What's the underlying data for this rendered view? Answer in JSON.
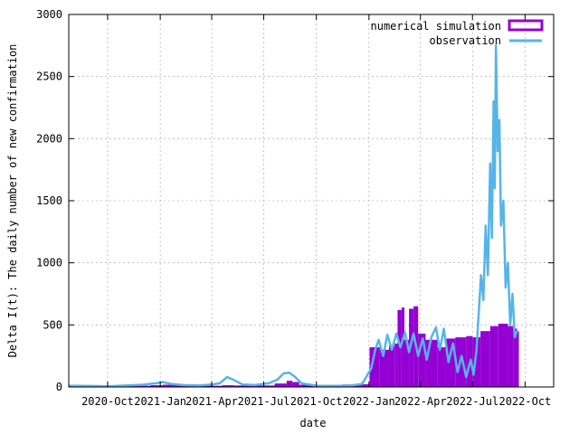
{
  "chart_data": {
    "type": "bar",
    "title": "",
    "xlabel": "date",
    "ylabel": "Delta I(t): The daily number of new confirmation",
    "x_range": [
      "2020-07-25",
      "2022-11-20"
    ],
    "ylim": [
      0,
      3000
    ],
    "x_ticks": [
      {
        "label": "2020-Oct",
        "date": "2020-10-01"
      },
      {
        "label": "2021-Jan",
        "date": "2021-01-01"
      },
      {
        "label": "2021-Apr",
        "date": "2021-04-01"
      },
      {
        "label": "2021-Jul",
        "date": "2021-07-01"
      },
      {
        "label": "2021-Oct",
        "date": "2021-10-01"
      },
      {
        "label": "2022-Jan",
        "date": "2022-01-01"
      },
      {
        "label": "2022-Apr",
        "date": "2022-04-01"
      },
      {
        "label": "2022-Jul",
        "date": "2022-07-01"
      },
      {
        "label": "2022-Oct",
        "date": "2022-10-01"
      }
    ],
    "y_ticks": [
      0,
      500,
      1000,
      1500,
      2000,
      2500,
      3000
    ],
    "grid": true,
    "legend_position": "top-right",
    "series": [
      {
        "name": "numerical simulation",
        "kind": "bar",
        "color": "#9400d3",
        "points": [
          [
            "2020-07-25",
            8
          ],
          [
            "2020-09-01",
            8
          ],
          [
            "2020-11-01",
            10
          ],
          [
            "2020-12-15",
            14
          ],
          [
            "2021-01-05",
            18
          ],
          [
            "2021-02-15",
            12
          ],
          [
            "2021-04-01",
            10
          ],
          [
            "2021-04-20",
            14
          ],
          [
            "2021-05-10",
            12
          ],
          [
            "2021-06-15",
            12
          ],
          [
            "2021-07-20",
            28
          ],
          [
            "2021-08-10",
            50
          ],
          [
            "2021-08-20",
            40
          ],
          [
            "2021-09-01",
            18
          ],
          [
            "2021-10-15",
            16
          ],
          [
            "2021-11-15",
            20
          ],
          [
            "2021-12-15",
            22
          ],
          [
            "2021-12-31",
            24
          ],
          [
            "2022-01-02",
            320
          ],
          [
            "2022-01-20",
            300
          ],
          [
            "2022-02-05",
            330
          ],
          [
            "2022-02-15",
            350
          ],
          [
            "2022-02-20",
            620
          ],
          [
            "2022-02-27",
            640
          ],
          [
            "2022-03-04",
            380
          ],
          [
            "2022-03-12",
            630
          ],
          [
            "2022-03-20",
            650
          ],
          [
            "2022-03-28",
            430
          ],
          [
            "2022-04-10",
            380
          ],
          [
            "2022-05-01",
            320
          ],
          [
            "2022-05-15",
            390
          ],
          [
            "2022-06-01",
            400
          ],
          [
            "2022-06-20",
            410
          ],
          [
            "2022-07-01",
            400
          ],
          [
            "2022-07-15",
            450
          ],
          [
            "2022-08-01",
            490
          ],
          [
            "2022-08-15",
            510
          ],
          [
            "2022-09-01",
            490
          ],
          [
            "2022-09-10",
            470
          ],
          [
            "2022-09-17",
            450
          ]
        ]
      },
      {
        "name": "observation",
        "kind": "line",
        "color": "#56b4e9",
        "points": [
          [
            "2020-07-25",
            10
          ],
          [
            "2020-09-01",
            8
          ],
          [
            "2020-10-01",
            5
          ],
          [
            "2020-11-01",
            12
          ],
          [
            "2020-12-01",
            18
          ],
          [
            "2020-12-25",
            30
          ],
          [
            "2021-01-05",
            40
          ],
          [
            "2021-01-20",
            25
          ],
          [
            "2021-02-10",
            15
          ],
          [
            "2021-03-10",
            12
          ],
          [
            "2021-04-01",
            20
          ],
          [
            "2021-04-15",
            30
          ],
          [
            "2021-04-28",
            80
          ],
          [
            "2021-05-10",
            55
          ],
          [
            "2021-05-25",
            20
          ],
          [
            "2021-06-15",
            15
          ],
          [
            "2021-07-10",
            30
          ],
          [
            "2021-07-25",
            60
          ],
          [
            "2021-08-05",
            110
          ],
          [
            "2021-08-15",
            115
          ],
          [
            "2021-08-25",
            80
          ],
          [
            "2021-09-05",
            30
          ],
          [
            "2021-10-01",
            10
          ],
          [
            "2021-11-01",
            8
          ],
          [
            "2021-12-01",
            12
          ],
          [
            "2021-12-20",
            25
          ],
          [
            "2022-01-05",
            150
          ],
          [
            "2022-01-12",
            300
          ],
          [
            "2022-01-18",
            380
          ],
          [
            "2022-01-26",
            250
          ],
          [
            "2022-02-02",
            420
          ],
          [
            "2022-02-10",
            300
          ],
          [
            "2022-02-18",
            430
          ],
          [
            "2022-02-25",
            320
          ],
          [
            "2022-03-05",
            440
          ],
          [
            "2022-03-12",
            280
          ],
          [
            "2022-03-20",
            430
          ],
          [
            "2022-03-28",
            250
          ],
          [
            "2022-04-05",
            390
          ],
          [
            "2022-04-12",
            220
          ],
          [
            "2022-04-20",
            400
          ],
          [
            "2022-04-28",
            480
          ],
          [
            "2022-05-05",
            300
          ],
          [
            "2022-05-12",
            470
          ],
          [
            "2022-05-20",
            200
          ],
          [
            "2022-05-28",
            350
          ],
          [
            "2022-06-05",
            120
          ],
          [
            "2022-06-12",
            250
          ],
          [
            "2022-06-20",
            80
          ],
          [
            "2022-06-28",
            220
          ],
          [
            "2022-07-03",
            100
          ],
          [
            "2022-07-08",
            300
          ],
          [
            "2022-07-12",
            600
          ],
          [
            "2022-07-16",
            900
          ],
          [
            "2022-07-20",
            700
          ],
          [
            "2022-07-24",
            1300
          ],
          [
            "2022-07-28",
            900
          ],
          [
            "2022-08-01",
            1800
          ],
          [
            "2022-08-04",
            1200
          ],
          [
            "2022-08-07",
            2300
          ],
          [
            "2022-08-09",
            1600
          ],
          [
            "2022-08-11",
            2750
          ],
          [
            "2022-08-14",
            1900
          ],
          [
            "2022-08-17",
            2150
          ],
          [
            "2022-08-20",
            1300
          ],
          [
            "2022-08-24",
            1500
          ],
          [
            "2022-08-28",
            800
          ],
          [
            "2022-09-01",
            1000
          ],
          [
            "2022-09-05",
            500
          ],
          [
            "2022-09-09",
            750
          ],
          [
            "2022-09-13",
            400
          ],
          [
            "2022-09-17",
            450
          ]
        ]
      }
    ]
  }
}
